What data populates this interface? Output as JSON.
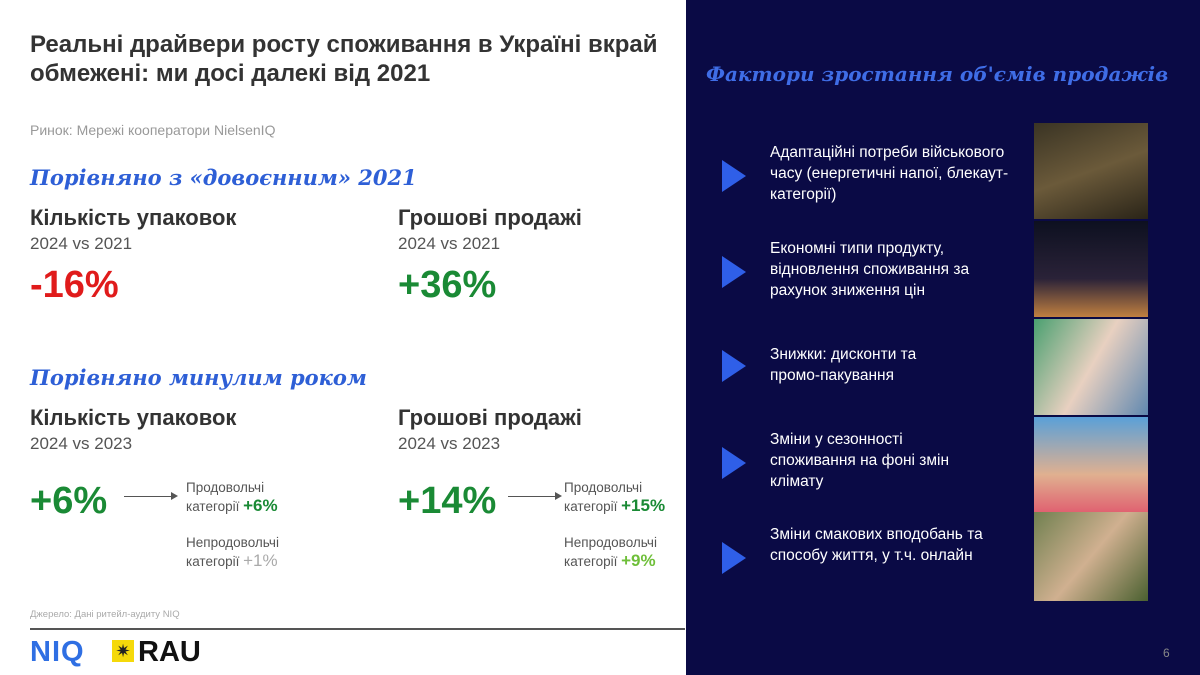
{
  "title": "Реальні драйвери росту споживання в Україні вкрай обмежені: ми досі далекі від 2021",
  "market": "Ринок: Мережі кооператори NielsenIQ",
  "vs2021": {
    "section": "Порівняно з «довоєнним» 2021",
    "units": {
      "label": "Кількість упаковок",
      "period": "2024 vs 2021",
      "value": "-16%"
    },
    "money": {
      "label": "Грошові продажі",
      "period": "2024 vs 2021",
      "value": "+36%"
    }
  },
  "vs2023": {
    "section": "Порівняно минулим роком",
    "units": {
      "label": "Кількість упаковок",
      "period": "2024 vs 2023",
      "value": "+6%",
      "food": {
        "l1": "Продовольчі",
        "l2": "категорії",
        "v": "+6%"
      },
      "nonfood": {
        "l1": "Непродовольчі",
        "l2": "категорії",
        "v": "+1%"
      }
    },
    "money": {
      "label": "Грошові продажі",
      "period": "2024 vs 2023",
      "value": "+14%",
      "food": {
        "l1": "Продовольчі",
        "l2": "категорії",
        "v": "+15%"
      },
      "nonfood": {
        "l1": "Непродовольчі",
        "l2": "категорії",
        "v": "+9%"
      }
    }
  },
  "source": "Джерело: Дані ритейл-аудиту NIQ",
  "logos": {
    "niq": "NIQ",
    "rau": "RAU"
  },
  "panel": {
    "title": "Фактори зростання об'ємів продажів",
    "items": [
      {
        "text": "Адаптаційні потреби військового часу (енергетичні напої, блекаут-категорії)"
      },
      {
        "text": "Економні типи продукту, відновлення споживання за рахунок зниження цін"
      },
      {
        "text": "Знижки: дисконти та промо-пакування"
      },
      {
        "text": "Зміни у сезонності споживання на фоні змін клімату"
      },
      {
        "text": "Зміни смакових вподобань та способу життя, у т.ч. онлайн"
      }
    ]
  },
  "page_number": "6",
  "colors": {
    "negative": "#e01b1b",
    "positive": "#1a8a35",
    "accent": "#2e5fd6",
    "panel_bg": "#0a0a45"
  }
}
